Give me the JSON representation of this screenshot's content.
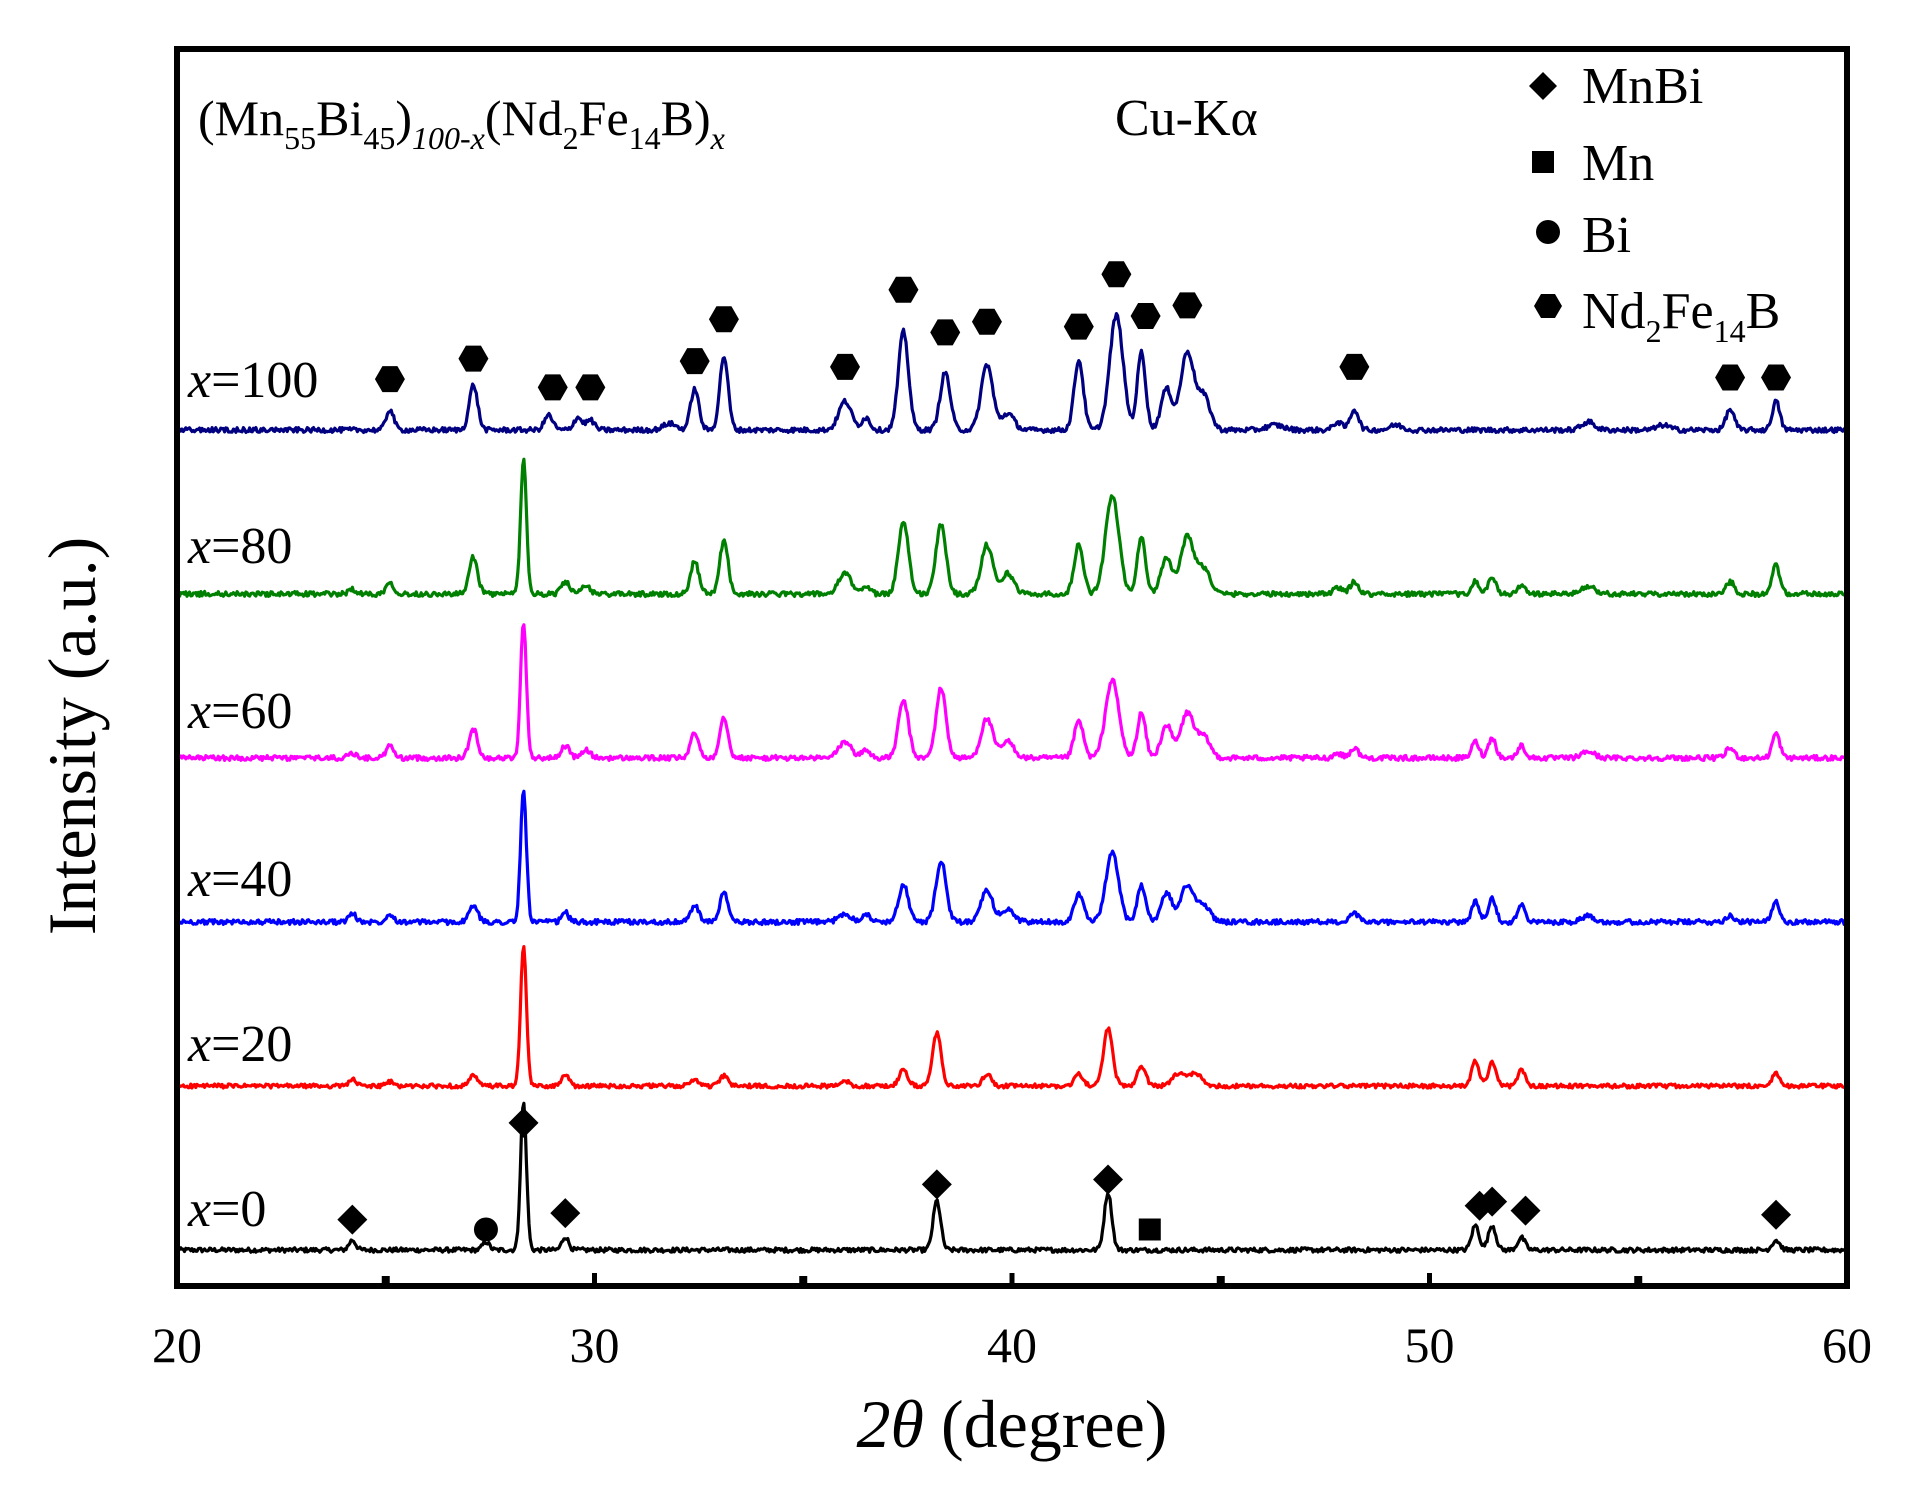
{
  "chart_data": {
    "type": "line",
    "title": "",
    "formula": {
      "p1": "(Mn",
      "s1": "55",
      "p2": "Bi",
      "s2": "45",
      "p3": ")",
      "s3": "100-x",
      "p4": "(Nd",
      "s4": "2",
      "p5": "Fe",
      "s5": "14",
      "p6": "B)",
      "s6": "x"
    },
    "radiation": "Cu-Kα",
    "xlabel": {
      "symbol": "2θ",
      "text": " (degree)"
    },
    "ylabel": "Intensity (a.u.)",
    "xlim": [
      20,
      60
    ],
    "xticks": [
      20,
      30,
      40,
      50,
      60
    ],
    "xtick_labels": [
      "20",
      "30",
      "40",
      "50",
      "60"
    ],
    "minor_ticks": [
      25,
      35,
      45,
      55
    ],
    "grid": false,
    "legend": {
      "placement": "top-right",
      "entries": [
        {
          "marker": "diamond",
          "label": "MnBi"
        },
        {
          "marker": "square",
          "label": "Mn"
        },
        {
          "marker": "circle",
          "label": "Bi"
        },
        {
          "marker": "hexagon",
          "label": "Nd",
          "sub1": "2",
          "mid": "Fe",
          "sub2": "14",
          "end": "B"
        }
      ]
    },
    "series_label_prefix": "x",
    "series": [
      {
        "name": "x=0",
        "value": "=0",
        "color": "#000000",
        "offset": 0,
        "noise": 0.55,
        "peaks": [
          [
            24.2,
            1.2,
            0.08
          ],
          [
            27.4,
            1.0,
            0.08
          ],
          [
            28.3,
            18.0,
            0.07
          ],
          [
            29.3,
            1.6,
            0.08
          ],
          [
            38.2,
            6.0,
            0.09
          ],
          [
            42.3,
            7.0,
            0.09
          ],
          [
            51.1,
            3.0,
            0.09
          ],
          [
            51.5,
            3.0,
            0.09
          ],
          [
            52.2,
            1.5,
            0.09
          ],
          [
            58.3,
            1.2,
            0.09
          ]
        ]
      },
      {
        "name": "x=20",
        "value": "=20",
        "color": "#ff0000",
        "offset": 20,
        "noise": 0.5,
        "peaks": [
          [
            24.2,
            0.8,
            0.09
          ],
          [
            25.1,
            0.5,
            0.09
          ],
          [
            27.1,
            1.2,
            0.1
          ],
          [
            28.3,
            17.0,
            0.07
          ],
          [
            29.3,
            1.5,
            0.08
          ],
          [
            32.4,
            0.8,
            0.1
          ],
          [
            33.1,
            1.2,
            0.1
          ],
          [
            36.0,
            0.6,
            0.1
          ],
          [
            37.4,
            2.0,
            0.1
          ],
          [
            38.2,
            6.5,
            0.1
          ],
          [
            39.4,
            1.5,
            0.1
          ],
          [
            41.6,
            1.5,
            0.1
          ],
          [
            42.3,
            7.0,
            0.11
          ],
          [
            43.1,
            2.5,
            0.1
          ],
          [
            44.0,
            1.5,
            0.15
          ],
          [
            44.4,
            1.5,
            0.15
          ],
          [
            51.1,
            3.0,
            0.09
          ],
          [
            51.5,
            3.0,
            0.09
          ],
          [
            52.2,
            2.0,
            0.09
          ],
          [
            58.3,
            1.5,
            0.09
          ]
        ]
      },
      {
        "name": "x=40",
        "value": "=40",
        "color": "#0000ff",
        "offset": 40,
        "noise": 0.6,
        "peaks": [
          [
            24.2,
            1.0,
            0.09
          ],
          [
            25.1,
            1.0,
            0.09
          ],
          [
            27.1,
            2.0,
            0.1
          ],
          [
            28.3,
            16.0,
            0.07
          ],
          [
            29.3,
            1.2,
            0.08
          ],
          [
            32.4,
            2.0,
            0.1
          ],
          [
            33.1,
            3.5,
            0.1
          ],
          [
            36.0,
            1.0,
            0.15
          ],
          [
            36.5,
            1.0,
            0.1
          ],
          [
            37.4,
            4.5,
            0.12
          ],
          [
            38.3,
            7.5,
            0.12
          ],
          [
            39.4,
            3.8,
            0.14
          ],
          [
            39.9,
            1.5,
            0.15
          ],
          [
            41.6,
            3.5,
            0.11
          ],
          [
            42.4,
            8.5,
            0.15
          ],
          [
            43.1,
            4.5,
            0.1
          ],
          [
            43.7,
            3.5,
            0.13
          ],
          [
            44.2,
            4.5,
            0.16
          ],
          [
            44.6,
            2.0,
            0.15
          ],
          [
            48.2,
            1.0,
            0.1
          ],
          [
            51.1,
            2.5,
            0.09
          ],
          [
            51.5,
            3.0,
            0.09
          ],
          [
            52.2,
            2.0,
            0.09
          ],
          [
            53.8,
            0.8,
            0.15
          ],
          [
            57.2,
            0.8,
            0.1
          ],
          [
            58.3,
            2.5,
            0.09
          ]
        ]
      },
      {
        "name": "x=60",
        "value": "=60",
        "color": "#ff00ff",
        "offset": 60,
        "noise": 0.6,
        "peaks": [
          [
            24.2,
            0.6,
            0.09
          ],
          [
            25.1,
            1.5,
            0.09
          ],
          [
            27.1,
            3.5,
            0.1
          ],
          [
            28.3,
            16.5,
            0.07
          ],
          [
            29.3,
            1.5,
            0.1
          ],
          [
            29.8,
            1.0,
            0.1
          ],
          [
            32.4,
            3.0,
            0.1
          ],
          [
            33.1,
            5.0,
            0.1
          ],
          [
            36.0,
            2.0,
            0.15
          ],
          [
            36.5,
            1.0,
            0.1
          ],
          [
            37.4,
            7.0,
            0.12
          ],
          [
            38.3,
            8.5,
            0.12
          ],
          [
            39.4,
            4.8,
            0.14
          ],
          [
            39.9,
            2.0,
            0.15
          ],
          [
            41.6,
            4.5,
            0.11
          ],
          [
            42.4,
            9.5,
            0.16
          ],
          [
            43.1,
            5.5,
            0.1
          ],
          [
            43.7,
            4.0,
            0.13
          ],
          [
            44.2,
            5.5,
            0.16
          ],
          [
            44.6,
            2.5,
            0.15
          ],
          [
            47.8,
            0.6,
            0.1
          ],
          [
            48.2,
            1.2,
            0.1
          ],
          [
            51.1,
            2.0,
            0.09
          ],
          [
            51.5,
            2.5,
            0.09
          ],
          [
            52.2,
            1.5,
            0.09
          ],
          [
            53.8,
            0.8,
            0.15
          ],
          [
            57.2,
            1.2,
            0.1
          ],
          [
            58.3,
            3.0,
            0.09
          ]
        ]
      },
      {
        "name": "x=80",
        "value": "=80",
        "color": "#008000",
        "offset": 80,
        "noise": 0.6,
        "peaks": [
          [
            24.2,
            0.6,
            0.09
          ],
          [
            25.1,
            1.5,
            0.09
          ],
          [
            27.1,
            4.5,
            0.1
          ],
          [
            28.3,
            16.5,
            0.07
          ],
          [
            29.3,
            1.5,
            0.1
          ],
          [
            29.8,
            1.0,
            0.1
          ],
          [
            32.4,
            4.0,
            0.1
          ],
          [
            33.1,
            6.5,
            0.1
          ],
          [
            36.0,
            2.5,
            0.15
          ],
          [
            36.5,
            1.0,
            0.1
          ],
          [
            37.4,
            9.0,
            0.12
          ],
          [
            38.3,
            8.5,
            0.12
          ],
          [
            39.4,
            6.0,
            0.14
          ],
          [
            39.9,
            2.5,
            0.15
          ],
          [
            41.6,
            6.0,
            0.11
          ],
          [
            42.4,
            12.0,
            0.16
          ],
          [
            43.1,
            7.0,
            0.1
          ],
          [
            43.7,
            4.5,
            0.13
          ],
          [
            44.2,
            7.0,
            0.16
          ],
          [
            44.6,
            3.0,
            0.15
          ],
          [
            47.8,
            0.8,
            0.1
          ],
          [
            48.2,
            1.5,
            0.1
          ],
          [
            51.1,
            1.5,
            0.09
          ],
          [
            51.5,
            2.0,
            0.09
          ],
          [
            52.2,
            1.0,
            0.09
          ],
          [
            53.8,
            1.0,
            0.15
          ],
          [
            57.2,
            1.5,
            0.1
          ],
          [
            58.3,
            3.5,
            0.09
          ]
        ]
      },
      {
        "name": "x=100",
        "value": "=100",
        "color": "#000080",
        "offset": 100,
        "noise": 0.6,
        "peaks": [
          [
            25.1,
            2.5,
            0.09
          ],
          [
            27.1,
            5.5,
            0.1
          ],
          [
            28.9,
            1.8,
            0.1
          ],
          [
            29.6,
            1.5,
            0.1
          ],
          [
            29.9,
            1.2,
            0.1
          ],
          [
            31.8,
            0.8,
            0.15
          ],
          [
            32.4,
            5.0,
            0.1
          ],
          [
            33.1,
            9.0,
            0.1
          ],
          [
            36.0,
            3.5,
            0.15
          ],
          [
            36.5,
            1.5,
            0.1
          ],
          [
            37.4,
            12.0,
            0.12
          ],
          [
            38.4,
            7.0,
            0.12
          ],
          [
            39.4,
            8.0,
            0.14
          ],
          [
            39.9,
            2.0,
            0.15
          ],
          [
            41.6,
            8.5,
            0.11
          ],
          [
            42.5,
            14.0,
            0.16
          ],
          [
            43.1,
            9.5,
            0.1
          ],
          [
            43.7,
            5.0,
            0.13
          ],
          [
            44.2,
            9.5,
            0.16
          ],
          [
            44.6,
            4.0,
            0.15
          ],
          [
            46.3,
            0.6,
            0.2
          ],
          [
            47.8,
            1.0,
            0.1
          ],
          [
            48.2,
            2.5,
            0.1
          ],
          [
            49.2,
            0.6,
            0.15
          ],
          [
            53.8,
            1.0,
            0.15
          ],
          [
            55.6,
            0.6,
            0.15
          ],
          [
            57.2,
            2.5,
            0.1
          ],
          [
            58.3,
            3.5,
            0.09
          ]
        ]
      }
    ],
    "annotations": [
      {
        "marker": "diamond",
        "x": 24.2,
        "y": 3.7
      },
      {
        "marker": "circle",
        "x": 27.4,
        "y": 2.5
      },
      {
        "marker": "diamond",
        "x": 28.3,
        "y": 15.5
      },
      {
        "marker": "diamond",
        "x": 29.3,
        "y": 4.5
      },
      {
        "marker": "diamond",
        "x": 38.2,
        "y": 8.0
      },
      {
        "marker": "diamond",
        "x": 42.3,
        "y": 8.6
      },
      {
        "marker": "square",
        "x": 43.3,
        "y": 2.5
      },
      {
        "marker": "diamond",
        "x": 51.2,
        "y": 5.4
      },
      {
        "marker": "diamond",
        "x": 51.5,
        "y": 5.9
      },
      {
        "marker": "diamond",
        "x": 52.3,
        "y": 4.8
      },
      {
        "marker": "diamond",
        "x": 58.3,
        "y": 4.3
      },
      {
        "marker": "hexagon",
        "x": 25.1,
        "y": 106.2
      },
      {
        "marker": "hexagon",
        "x": 27.1,
        "y": 108.7
      },
      {
        "marker": "hexagon",
        "x": 29.0,
        "y": 105.2
      },
      {
        "marker": "hexagon",
        "x": 29.9,
        "y": 105.2
      },
      {
        "marker": "hexagon",
        "x": 32.4,
        "y": 108.4
      },
      {
        "marker": "hexagon",
        "x": 33.1,
        "y": 113.5
      },
      {
        "marker": "hexagon",
        "x": 36.0,
        "y": 107.7
      },
      {
        "marker": "hexagon",
        "x": 37.4,
        "y": 117.1
      },
      {
        "marker": "hexagon",
        "x": 38.4,
        "y": 111.9
      },
      {
        "marker": "hexagon",
        "x": 39.4,
        "y": 113.2
      },
      {
        "marker": "hexagon",
        "x": 41.6,
        "y": 112.6
      },
      {
        "marker": "hexagon",
        "x": 42.5,
        "y": 119.0
      },
      {
        "marker": "hexagon",
        "x": 43.2,
        "y": 113.9
      },
      {
        "marker": "hexagon",
        "x": 44.2,
        "y": 115.2
      },
      {
        "marker": "hexagon",
        "x": 48.2,
        "y": 107.7
      },
      {
        "marker": "hexagon",
        "x": 57.2,
        "y": 106.4
      },
      {
        "marker": "hexagon",
        "x": 58.3,
        "y": 106.4
      }
    ]
  }
}
